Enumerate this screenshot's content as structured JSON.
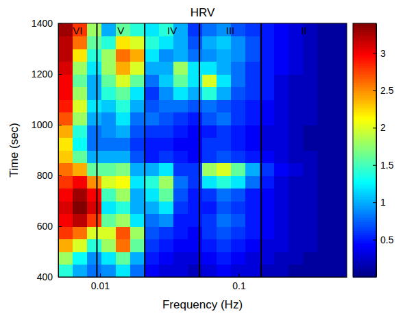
{
  "chart_data": {
    "type": "heatmap",
    "title": "HRV",
    "xlabel": "Frequency (Hz)",
    "ylabel": "Time (sec)",
    "log": "x",
    "xlim": [
      0.005,
      0.6
    ],
    "xticks": [
      0.01,
      0.1
    ],
    "ylim": [
      400,
      1400
    ],
    "yticks": [
      400,
      600,
      800,
      1000,
      1200,
      1400
    ],
    "band_edges": [
      0.0095,
      0.021,
      0.052,
      0.145
    ],
    "band_labels": [
      "VI",
      "V",
      "IV",
      "III",
      "II"
    ],
    "x_bins": [
      0.005,
      0.00635,
      0.00806,
      0.01024,
      0.013,
      0.0165,
      0.021,
      0.0266,
      0.0338,
      0.043,
      0.0546,
      0.0693,
      0.088,
      0.1118,
      0.142,
      0.18,
      0.229,
      0.291,
      0.37,
      0.47,
      0.6
    ],
    "y_bins": [
      400,
      450,
      500,
      550,
      600,
      650,
      700,
      750,
      800,
      850,
      900,
      950,
      1000,
      1050,
      1100,
      1150,
      1200,
      1250,
      1300,
      1350,
      1400
    ],
    "z": [
      [
        1.4,
        1.0,
        0.8,
        0.9,
        1.2,
        0.8,
        0.4,
        0.3,
        0.3,
        0.2,
        0.3,
        0.4,
        0.3,
        0.3,
        0.2,
        0.2,
        0.1,
        0.1,
        0.1,
        0.1
      ],
      [
        1.8,
        1.3,
        0.9,
        1.2,
        1.6,
        1.0,
        0.5,
        0.4,
        0.3,
        0.3,
        0.4,
        0.5,
        0.4,
        0.3,
        0.3,
        0.2,
        0.2,
        0.1,
        0.1,
        0.1
      ],
      [
        2.4,
        2.0,
        1.4,
        1.8,
        2.6,
        1.6,
        0.6,
        0.5,
        0.4,
        0.4,
        0.5,
        0.6,
        0.5,
        0.4,
        0.3,
        0.3,
        0.2,
        0.2,
        0.1,
        0.1
      ],
      [
        2.8,
        2.6,
        2.0,
        2.0,
        2.7,
        1.8,
        0.7,
        0.6,
        0.5,
        0.4,
        0.6,
        0.7,
        0.6,
        0.5,
        0.4,
        0.3,
        0.2,
        0.2,
        0.1,
        0.1
      ],
      [
        3.0,
        3.2,
        2.8,
        1.6,
        1.8,
        1.2,
        0.8,
        0.9,
        0.5,
        0.5,
        0.6,
        0.8,
        0.7,
        0.5,
        0.4,
        0.3,
        0.2,
        0.2,
        0.1,
        0.1
      ],
      [
        3.1,
        3.4,
        3.1,
        1.2,
        1.4,
        1.0,
        1.0,
        1.2,
        0.6,
        0.5,
        0.5,
        0.7,
        0.6,
        0.5,
        0.4,
        0.3,
        0.2,
        0.2,
        0.1,
        0.1
      ],
      [
        3.0,
        3.3,
        3.0,
        1.5,
        1.8,
        1.0,
        1.2,
        1.6,
        0.7,
        0.5,
        0.6,
        0.8,
        0.7,
        0.5,
        0.4,
        0.3,
        0.2,
        0.2,
        0.1,
        0.1
      ],
      [
        2.8,
        3.0,
        2.5,
        2.0,
        2.1,
        1.2,
        1.4,
        1.8,
        0.8,
        0.6,
        1.2,
        1.4,
        1.2,
        0.8,
        0.5,
        0.3,
        0.2,
        0.2,
        0.1,
        0.1
      ],
      [
        2.6,
        2.4,
        1.6,
        1.6,
        1.7,
        1.0,
        1.0,
        1.2,
        0.6,
        0.6,
        1.8,
        2.0,
        1.6,
        1.0,
        0.6,
        0.4,
        0.3,
        0.2,
        0.1,
        0.1
      ],
      [
        2.3,
        1.6,
        1.0,
        1.0,
        1.0,
        0.7,
        0.5,
        0.6,
        0.5,
        0.4,
        0.6,
        0.7,
        0.6,
        0.5,
        0.4,
        0.3,
        0.2,
        0.2,
        0.1,
        0.1
      ],
      [
        2.2,
        1.3,
        0.8,
        0.8,
        0.8,
        0.6,
        0.5,
        0.5,
        0.4,
        0.4,
        0.6,
        0.6,
        0.5,
        0.4,
        0.3,
        0.3,
        0.2,
        0.1,
        0.1,
        0.1
      ],
      [
        2.4,
        1.4,
        0.8,
        0.9,
        1.0,
        0.7,
        0.6,
        0.6,
        0.5,
        0.4,
        0.5,
        0.6,
        0.5,
        0.4,
        0.3,
        0.3,
        0.2,
        0.1,
        0.1,
        0.1
      ],
      [
        2.7,
        1.8,
        1.0,
        0.9,
        1.2,
        0.8,
        0.8,
        0.7,
        0.6,
        0.5,
        0.7,
        0.8,
        0.6,
        0.5,
        0.4,
        0.3,
        0.2,
        0.2,
        0.1,
        0.1
      ],
      [
        2.9,
        2.0,
        1.2,
        1.1,
        1.4,
        1.0,
        0.7,
        0.8,
        0.8,
        0.7,
        0.8,
        0.7,
        0.6,
        0.5,
        0.4,
        0.3,
        0.2,
        0.2,
        0.1,
        0.1
      ],
      [
        3.0,
        1.8,
        1.0,
        1.4,
        1.6,
        1.2,
        0.6,
        0.9,
        1.2,
        1.0,
        1.4,
        1.0,
        0.7,
        0.6,
        0.5,
        0.3,
        0.2,
        0.2,
        0.1,
        0.1
      ],
      [
        3.0,
        1.6,
        1.0,
        1.6,
        2.0,
        1.6,
        0.8,
        1.1,
        1.6,
        1.2,
        2.0,
        1.2,
        0.8,
        0.6,
        0.5,
        0.3,
        0.2,
        0.2,
        0.1,
        0.1
      ],
      [
        3.1,
        1.8,
        1.2,
        1.8,
        2.4,
        2.0,
        1.0,
        1.0,
        1.8,
        1.2,
        1.2,
        1.0,
        0.8,
        0.6,
        0.5,
        0.4,
        0.3,
        0.2,
        0.1,
        0.1
      ],
      [
        3.2,
        2.2,
        1.4,
        1.8,
        2.6,
        2.4,
        1.2,
        0.9,
        1.0,
        0.8,
        0.9,
        1.0,
        0.9,
        0.7,
        0.5,
        0.4,
        0.3,
        0.2,
        0.1,
        0.1
      ],
      [
        3.2,
        2.6,
        1.6,
        1.4,
        2.2,
        2.0,
        1.4,
        1.2,
        1.0,
        0.7,
        1.0,
        1.1,
        0.9,
        0.7,
        0.5,
        0.4,
        0.3,
        0.2,
        0.1,
        0.1
      ],
      [
        3.3,
        2.8,
        1.8,
        1.0,
        1.6,
        1.4,
        1.2,
        1.4,
        1.0,
        0.6,
        0.8,
        0.9,
        0.7,
        0.6,
        0.5,
        0.4,
        0.3,
        0.2,
        0.1,
        0.1
      ]
    ],
    "colorbar": {
      "range": [
        0,
        3.4
      ],
      "ticks": [
        0.5,
        1,
        1.5,
        2,
        2.5,
        3
      ]
    }
  }
}
